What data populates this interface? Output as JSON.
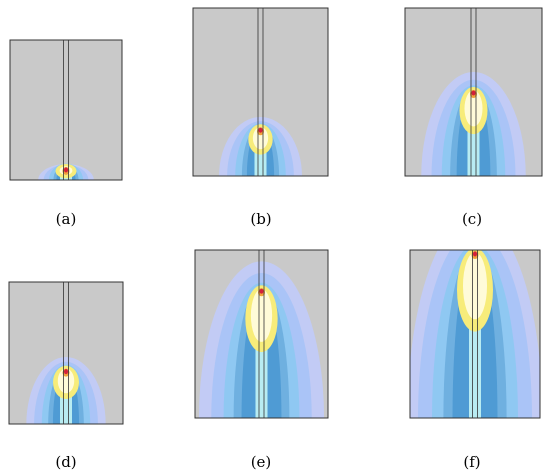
{
  "panels": [
    {
      "label": "(a)",
      "stage": 0.06
    },
    {
      "label": "(b)",
      "stage": 0.27
    },
    {
      "label": "(c)",
      "stage": 0.5
    },
    {
      "label": "(d)",
      "stage": 0.37
    },
    {
      "label": "(e)",
      "stage": 0.77
    },
    {
      "label": "(f)",
      "stage": 1.0
    }
  ],
  "colors": {
    "box_fill": "#c9c9c9",
    "box_stroke": "#333333",
    "crack_line": "#333333",
    "band_outer": "#c2cbf5",
    "band_2": "#aac4f7",
    "band_3": "#8fc8f2",
    "band_4": "#6fb0e0",
    "band_5": "#4f9bd4",
    "band_inner_cyan": "#b8ecf2",
    "core_light": "#fffbd8",
    "core_yellow": "#f7ec7a",
    "core_orange": "#f1a23c",
    "tip_red": "#d4213a"
  }
}
